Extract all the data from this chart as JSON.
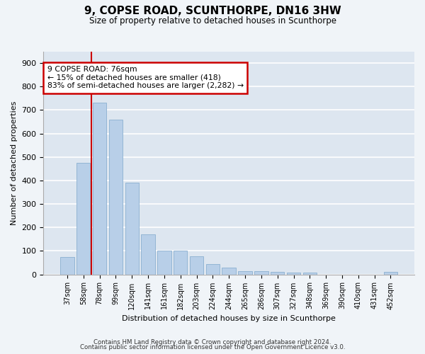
{
  "title1": "9, COPSE ROAD, SCUNTHORPE, DN16 3HW",
  "title2": "Size of property relative to detached houses in Scunthorpe",
  "xlabel": "Distribution of detached houses by size in Scunthorpe",
  "ylabel": "Number of detached properties",
  "categories": [
    "37sqm",
    "58sqm",
    "78sqm",
    "99sqm",
    "120sqm",
    "141sqm",
    "161sqm",
    "182sqm",
    "203sqm",
    "224sqm",
    "244sqm",
    "265sqm",
    "286sqm",
    "307sqm",
    "327sqm",
    "348sqm",
    "369sqm",
    "390sqm",
    "410sqm",
    "431sqm",
    "452sqm"
  ],
  "values": [
    75,
    475,
    730,
    660,
    390,
    172,
    100,
    100,
    76,
    44,
    30,
    14,
    14,
    11,
    9,
    8,
    0,
    0,
    0,
    0,
    10
  ],
  "bar_color": "#b8cfe8",
  "bar_edge_color": "#8aafd0",
  "property_line_index": 2,
  "annotation_line1": "9 COPSE ROAD: 76sqm",
  "annotation_line2": "← 15% of detached houses are smaller (418)",
  "annotation_line3": "83% of semi-detached houses are larger (2,282) →",
  "annotation_box_color": "#ffffff",
  "annotation_box_edge_color": "#cc0000",
  "vline_color": "#cc0000",
  "ylim": [
    0,
    950
  ],
  "yticks": [
    0,
    100,
    200,
    300,
    400,
    500,
    600,
    700,
    800,
    900
  ],
  "background_color": "#dde6f0",
  "plot_bg_color": "#dde6f0",
  "grid_color": "#ffffff",
  "footer1": "Contains HM Land Registry data © Crown copyright and database right 2024.",
  "footer2": "Contains public sector information licensed under the Open Government Licence v3.0."
}
